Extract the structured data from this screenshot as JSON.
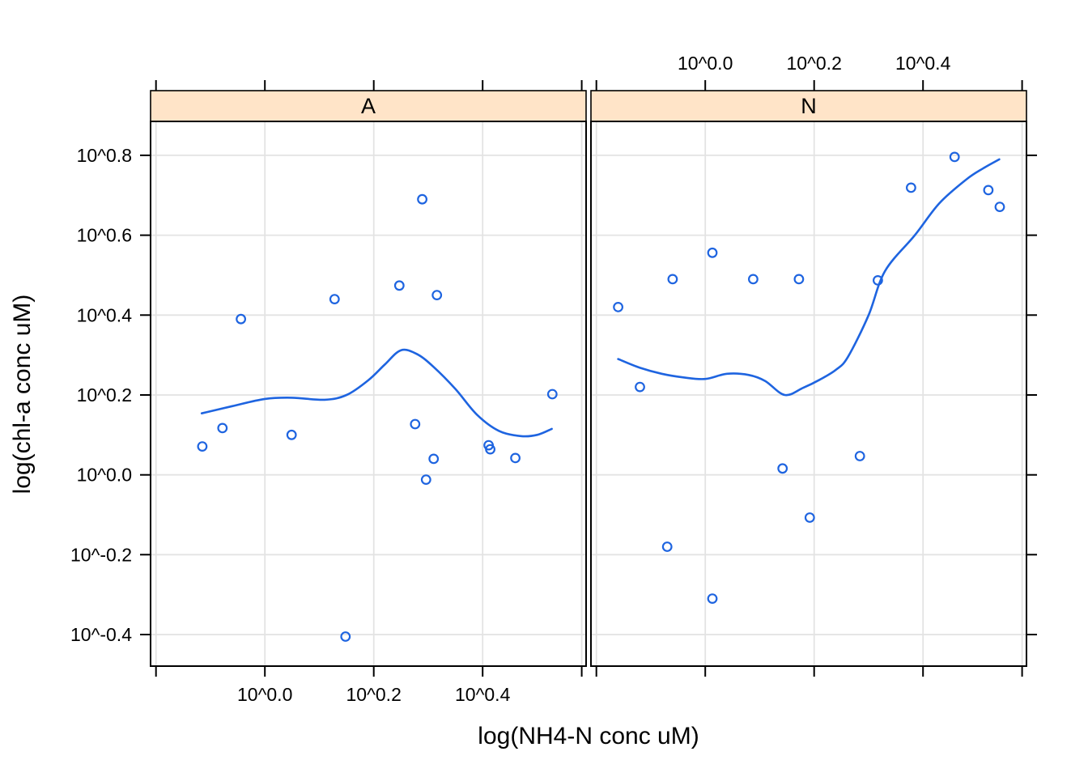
{
  "figure": {
    "background": "#ffffff"
  },
  "styles": {
    "point_line_color": "#1e64e0",
    "strip_fill": "#ffe4c8",
    "strip_border": "#000000",
    "panel_border": "#000000",
    "grid_color": "#e3e3e3",
    "text_color": "#000000"
  },
  "chart_data": {
    "type": "scatter",
    "title": "",
    "xlabel": "log(NH4-N conc uM)",
    "ylabel": "log(chl-a conc uM)",
    "scale_note": "both axes log10, labels shown as 10^v",
    "xlim": [
      -0.21,
      0.59
    ],
    "ylim": [
      -0.479,
      0.885
    ],
    "grid": true,
    "legend": "none",
    "x_ticks": {
      "positions": [
        -0.2,
        0.0,
        0.2,
        0.4,
        0.582
      ],
      "labels": [
        "",
        "10^0.0",
        "10^0.2",
        "10^0.4",
        ""
      ],
      "labels_shown_bottom_panel": "A",
      "labels_shown_top_panel": "N"
    },
    "y_ticks": {
      "positions": [
        0.8,
        0.6,
        0.4,
        0.2,
        0.0,
        -0.2,
        -0.4
      ],
      "labels": [
        "10^0.8",
        "10^0.6",
        "10^0.4",
        "10^0.2",
        "10^0.0",
        "10^-0.2",
        "10^-0.4"
      ]
    },
    "panels": [
      {
        "label": "A",
        "points": [
          [
            -0.115,
            0.071
          ],
          [
            -0.078,
            0.117
          ],
          [
            -0.044,
            0.39
          ],
          [
            0.049,
            0.1
          ],
          [
            0.128,
            0.44
          ],
          [
            0.148,
            -0.405
          ],
          [
            0.247,
            0.474
          ],
          [
            0.276,
            0.127
          ],
          [
            0.289,
            0.69
          ],
          [
            0.296,
            -0.012
          ],
          [
            0.31,
            0.04
          ],
          [
            0.316,
            0.45
          ],
          [
            0.411,
            0.074
          ],
          [
            0.414,
            0.064
          ],
          [
            0.46,
            0.042
          ],
          [
            0.528,
            0.202
          ]
        ],
        "loess": [
          [
            -0.116,
            0.154
          ],
          [
            -0.06,
            0.172
          ],
          [
            0.0,
            0.19
          ],
          [
            0.05,
            0.193
          ],
          [
            0.11,
            0.188
          ],
          [
            0.15,
            0.2
          ],
          [
            0.19,
            0.237
          ],
          [
            0.22,
            0.276
          ],
          [
            0.25,
            0.312
          ],
          [
            0.28,
            0.302
          ],
          [
            0.31,
            0.27
          ],
          [
            0.35,
            0.215
          ],
          [
            0.39,
            0.15
          ],
          [
            0.43,
            0.11
          ],
          [
            0.47,
            0.097
          ],
          [
            0.5,
            0.1
          ],
          [
            0.527,
            0.115
          ]
        ]
      },
      {
        "label": "N",
        "points": [
          [
            -0.16,
            0.42
          ],
          [
            -0.12,
            0.22
          ],
          [
            -0.07,
            -0.18
          ],
          [
            -0.06,
            0.49
          ],
          [
            0.013,
            0.556
          ],
          [
            0.013,
            -0.31
          ],
          [
            0.088,
            0.49
          ],
          [
            0.142,
            0.016
          ],
          [
            0.172,
            0.49
          ],
          [
            0.192,
            -0.107
          ],
          [
            0.284,
            0.047
          ],
          [
            0.317,
            0.487
          ],
          [
            0.378,
            0.719
          ],
          [
            0.458,
            0.796
          ],
          [
            0.52,
            0.713
          ],
          [
            0.541,
            0.671
          ]
        ],
        "loess": [
          [
            -0.16,
            0.29
          ],
          [
            -0.12,
            0.268
          ],
          [
            -0.08,
            0.253
          ],
          [
            -0.04,
            0.244
          ],
          [
            0.0,
            0.24
          ],
          [
            0.04,
            0.253
          ],
          [
            0.08,
            0.25
          ],
          [
            0.11,
            0.235
          ],
          [
            0.146,
            0.2
          ],
          [
            0.18,
            0.218
          ],
          [
            0.21,
            0.238
          ],
          [
            0.24,
            0.263
          ],
          [
            0.262,
            0.295
          ],
          [
            0.3,
            0.4
          ],
          [
            0.33,
            0.51
          ],
          [
            0.385,
            0.6
          ],
          [
            0.43,
            0.68
          ],
          [
            0.48,
            0.74
          ],
          [
            0.51,
            0.767
          ],
          [
            0.54,
            0.79
          ]
        ]
      }
    ]
  }
}
